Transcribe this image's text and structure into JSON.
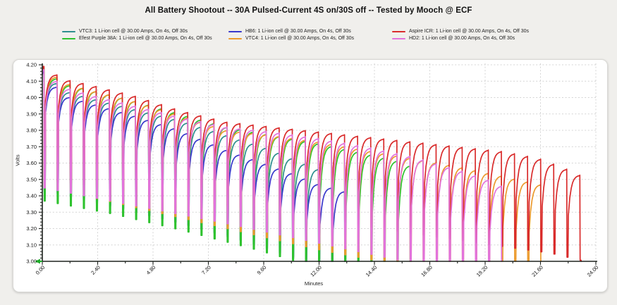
{
  "title": "All Battery Shootout -- 30A Pulsed-Current 4S on/30S off -- Tested by Mooch @ ECF",
  "legend": {
    "items": [
      {
        "label": "VTC3: 1 Li-ion cell @ 30.00 Amps, On 4s, Off 30s",
        "color": "#2E8F8F"
      },
      {
        "label": "HB6: 1 Li-ion cell @ 30.00 Amps, On 4s, Off 30s",
        "color": "#3939CC"
      },
      {
        "label": "Aspire ICR: 1 Li-ion cell @ 30.00 Amps, On 4s, Off 30s",
        "color": "#D92B2B"
      },
      {
        "label": "Efest Purple 38A: 1 Li-ion cell @ 30.00 Amps, On 4s, Off 30s",
        "color": "#2EC22E"
      },
      {
        "label": "VTC4: 1 Li-ion cell @ 30.00 Amps, On 4s, Off 30s",
        "color": "#EC9B2E"
      },
      {
        "label": "HD2: 1 Li-ion cell @ 30.00 Amps, On 4s, Off 30s",
        "color": "#E273DC"
      }
    ]
  },
  "chart_data": {
    "type": "line",
    "title": "All Battery Shootout -- 30A Pulsed-Current 4S on/30S off -- Tested by Mooch @ ECF",
    "xlabel": "Minutes",
    "ylabel": "Volts",
    "xlim": [
      0,
      24
    ],
    "ylim": [
      3.0,
      4.2
    ],
    "grid": "dotted",
    "legend_position": "top",
    "x_ticks": [
      [
        0,
        "0.00"
      ],
      [
        2.4,
        "2.40"
      ],
      [
        4.8,
        "4.80"
      ],
      [
        7.2,
        "7.20"
      ],
      [
        9.6,
        "9.60"
      ],
      [
        12,
        "12.00"
      ],
      [
        14.4,
        "14.40"
      ],
      [
        16.8,
        "16.80"
      ],
      [
        19.2,
        "19.20"
      ],
      [
        21.6,
        "21.60"
      ],
      [
        24,
        "24.00"
      ]
    ],
    "y_ticks": [
      [
        3.0,
        "3.00"
      ],
      [
        3.1,
        "3.10"
      ],
      [
        3.2,
        "3.20"
      ],
      [
        3.3,
        "3.30"
      ],
      [
        3.4,
        "3.40"
      ],
      [
        3.5,
        "3.50"
      ],
      [
        3.6,
        "3.60"
      ],
      [
        3.7,
        "3.70"
      ],
      [
        3.8,
        "3.80"
      ],
      [
        3.9,
        "3.90"
      ],
      [
        4.0,
        "4.00"
      ],
      [
        4.1,
        "4.10"
      ],
      [
        4.2,
        "4.20"
      ]
    ],
    "cutoff_marker": {
      "voltage": 3.0,
      "color": "#1fae2a"
    },
    "pulse": {
      "on_s": 4,
      "off_s": 30,
      "period_min": 0.5667,
      "first_pulse_min": 0.07,
      "current_amps": 30.0
    },
    "draw_order": [
      0,
      1,
      3,
      4,
      2,
      5
    ],
    "series": [
      {
        "name": "VTC3",
        "color": "#2E8F8F",
        "start_v": 4.17,
        "end_min": 12.25,
        "peak_envelope": [
          [
            0,
            4.17
          ],
          [
            1,
            4.04
          ],
          [
            2,
            4.0
          ],
          [
            4,
            3.93
          ],
          [
            6,
            3.86
          ],
          [
            8,
            3.77
          ],
          [
            10,
            3.68
          ],
          [
            11,
            3.62
          ],
          [
            12.2,
            3.55
          ]
        ],
        "dip_envelope": [
          [
            0,
            3.43
          ],
          [
            4,
            3.3
          ],
          [
            8,
            3.16
          ],
          [
            10,
            3.06
          ],
          [
            12.2,
            2.95
          ]
        ]
      },
      {
        "name": "HB6",
        "color": "#3939CC",
        "start_v": 4.16,
        "end_min": 13.4,
        "peak_envelope": [
          [
            0,
            4.16
          ],
          [
            1,
            4.01
          ],
          [
            2,
            3.97
          ],
          [
            4,
            3.89
          ],
          [
            6,
            3.8
          ],
          [
            8,
            3.68
          ],
          [
            10,
            3.58
          ],
          [
            11,
            3.53
          ],
          [
            12,
            3.47
          ],
          [
            13.3,
            3.42
          ]
        ],
        "dip_envelope": [
          [
            0,
            3.44
          ],
          [
            3,
            3.34
          ],
          [
            6,
            3.23
          ],
          [
            9,
            3.11
          ],
          [
            11,
            3.02
          ],
          [
            13.4,
            2.9
          ]
        ]
      },
      {
        "name": "Aspire ICR",
        "color": "#D92B2B",
        "start_v": 4.19,
        "end_min": 23.5,
        "peak_envelope": [
          [
            0,
            4.19
          ],
          [
            1,
            4.11
          ],
          [
            2,
            4.08
          ],
          [
            4,
            4.01
          ],
          [
            6,
            3.92
          ],
          [
            8,
            3.85
          ],
          [
            10,
            3.82
          ],
          [
            12,
            3.79
          ],
          [
            14,
            3.76
          ],
          [
            16,
            3.73
          ],
          [
            18,
            3.7
          ],
          [
            20,
            3.67
          ],
          [
            21.5,
            3.63
          ],
          [
            22.8,
            3.56
          ],
          [
            23.4,
            3.52
          ]
        ],
        "dip_envelope": [
          [
            0,
            3.5
          ],
          [
            4,
            3.42
          ],
          [
            8,
            3.34
          ],
          [
            12,
            3.26
          ],
          [
            16,
            3.17
          ],
          [
            19,
            3.11
          ],
          [
            22,
            3.05
          ],
          [
            23.5,
            3.0
          ]
        ]
      },
      {
        "name": "Efest Purple 38A",
        "color": "#2EC22E",
        "start_v": 4.18,
        "end_min": 16.3,
        "peak_envelope": [
          [
            0,
            4.18
          ],
          [
            1,
            4.08
          ],
          [
            2,
            4.05
          ],
          [
            4,
            3.98
          ],
          [
            6,
            3.9
          ],
          [
            8,
            3.82
          ],
          [
            10,
            3.77
          ],
          [
            12,
            3.72
          ],
          [
            14,
            3.66
          ],
          [
            15.5,
            3.61
          ],
          [
            16.2,
            3.57
          ]
        ],
        "dip_envelope": [
          [
            0,
            3.37
          ],
          [
            3,
            3.29
          ],
          [
            6,
            3.19
          ],
          [
            9,
            3.08
          ],
          [
            11,
            3.0
          ],
          [
            13,
            2.93
          ],
          [
            16.3,
            2.86
          ]
        ]
      },
      {
        "name": "VTC4",
        "color": "#EC9B2E",
        "start_v": 4.19,
        "end_min": 21.8,
        "peak_envelope": [
          [
            0,
            4.19
          ],
          [
            1,
            4.09
          ],
          [
            2,
            4.05
          ],
          [
            4,
            3.98
          ],
          [
            6,
            3.89
          ],
          [
            8,
            3.8
          ],
          [
            10,
            3.77
          ],
          [
            12,
            3.73
          ],
          [
            14,
            3.68
          ],
          [
            16,
            3.63
          ],
          [
            18,
            3.58
          ],
          [
            20,
            3.52
          ],
          [
            21.6,
            3.47
          ]
        ],
        "dip_envelope": [
          [
            0,
            3.46
          ],
          [
            4,
            3.33
          ],
          [
            8,
            3.2
          ],
          [
            12,
            3.07
          ],
          [
            15,
            2.99
          ],
          [
            18,
            2.92
          ],
          [
            21.8,
            2.86
          ]
        ]
      },
      {
        "name": "HD2",
        "color": "#E273DC",
        "start_v": 4.17,
        "end_min": 19.95,
        "peak_envelope": [
          [
            0,
            4.17
          ],
          [
            1,
            4.06
          ],
          [
            2,
            4.02
          ],
          [
            4,
            3.95
          ],
          [
            6,
            3.88
          ],
          [
            8,
            3.82
          ],
          [
            10,
            3.79
          ],
          [
            12,
            3.75
          ],
          [
            14,
            3.7
          ],
          [
            16,
            3.64
          ],
          [
            18,
            3.56
          ],
          [
            19.3,
            3.5
          ],
          [
            19.9,
            3.46
          ]
        ],
        "dip_envelope": [
          [
            0,
            3.45
          ],
          [
            4,
            3.34
          ],
          [
            8,
            3.23
          ],
          [
            12,
            3.11
          ],
          [
            15,
            3.02
          ],
          [
            17,
            2.96
          ],
          [
            19.9,
            2.88
          ]
        ]
      }
    ]
  }
}
